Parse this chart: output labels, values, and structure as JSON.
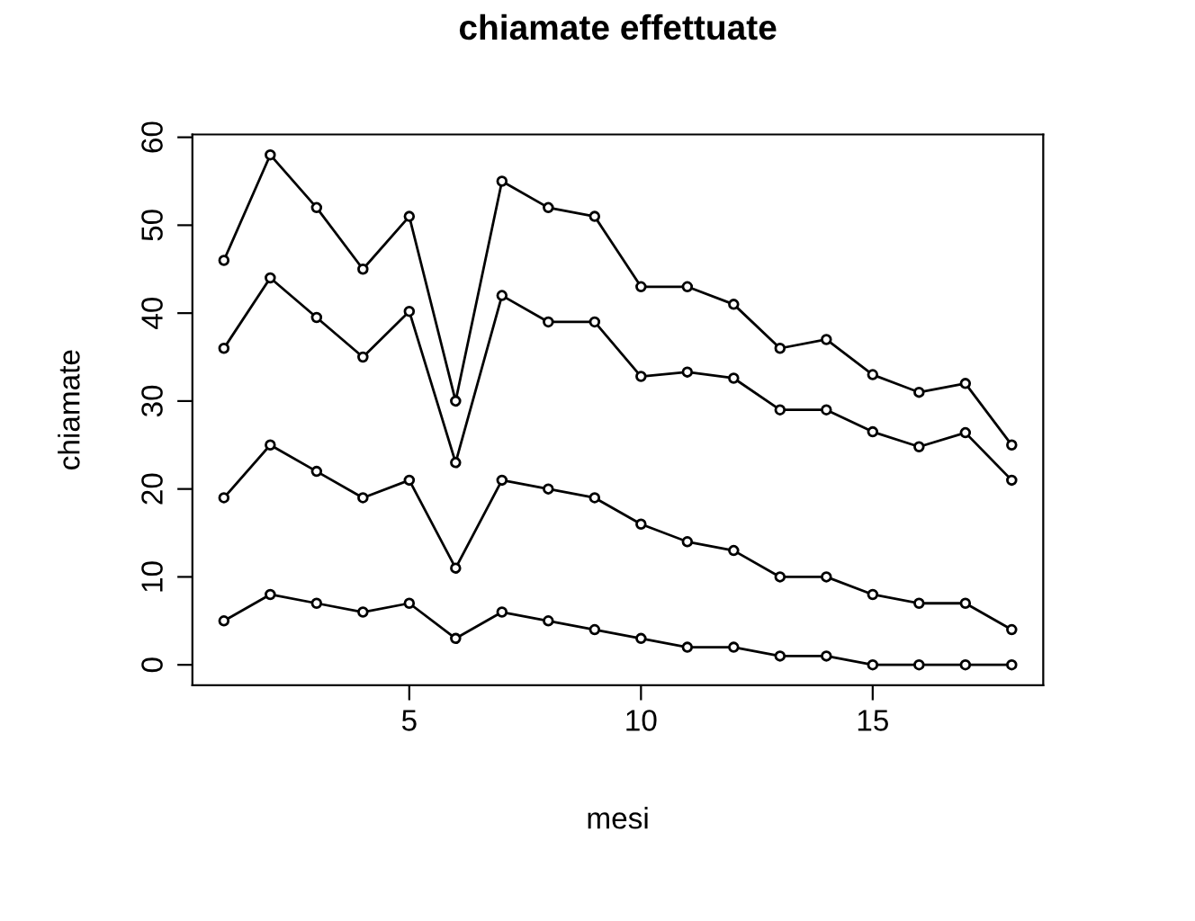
{
  "chart_data": {
    "type": "line",
    "title": "chiamate effettuate",
    "xlabel": "mesi",
    "ylabel": "chiamate",
    "x": [
      1,
      2,
      3,
      4,
      5,
      6,
      7,
      8,
      9,
      10,
      11,
      12,
      13,
      14,
      15,
      16,
      17,
      18
    ],
    "series": [
      {
        "color": "#000000",
        "values": [
          46,
          58,
          52,
          45,
          51,
          30,
          55,
          52,
          51,
          43,
          43,
          41,
          36,
          37,
          33,
          31,
          32,
          25
        ]
      },
      {
        "color": "#000000",
        "values": [
          36,
          44,
          39.5,
          35,
          40.2,
          23,
          42,
          39,
          39,
          32.8,
          33.3,
          32.6,
          29,
          29,
          26.5,
          24.8,
          26.4,
          21
        ]
      },
      {
        "color": "#000000",
        "values": [
          19,
          25,
          22,
          19,
          21,
          11,
          21,
          20,
          19,
          16,
          14,
          13,
          10,
          10,
          8,
          7,
          7,
          4
        ]
      },
      {
        "color": "#000000",
        "values": [
          5,
          8,
          7,
          6,
          7,
          3,
          6,
          5,
          4,
          3,
          2,
          2,
          1,
          1,
          0,
          0,
          0,
          0
        ]
      }
    ],
    "xlim": [
      0.32,
      18.68
    ],
    "ylim": [
      -2.32,
      60.32
    ],
    "xticks": [
      5,
      10,
      15
    ],
    "yticks": [
      0,
      10,
      20,
      30,
      40,
      50,
      60
    ],
    "grid": false,
    "legend": false,
    "marker": "circle",
    "line_style": "solid"
  }
}
